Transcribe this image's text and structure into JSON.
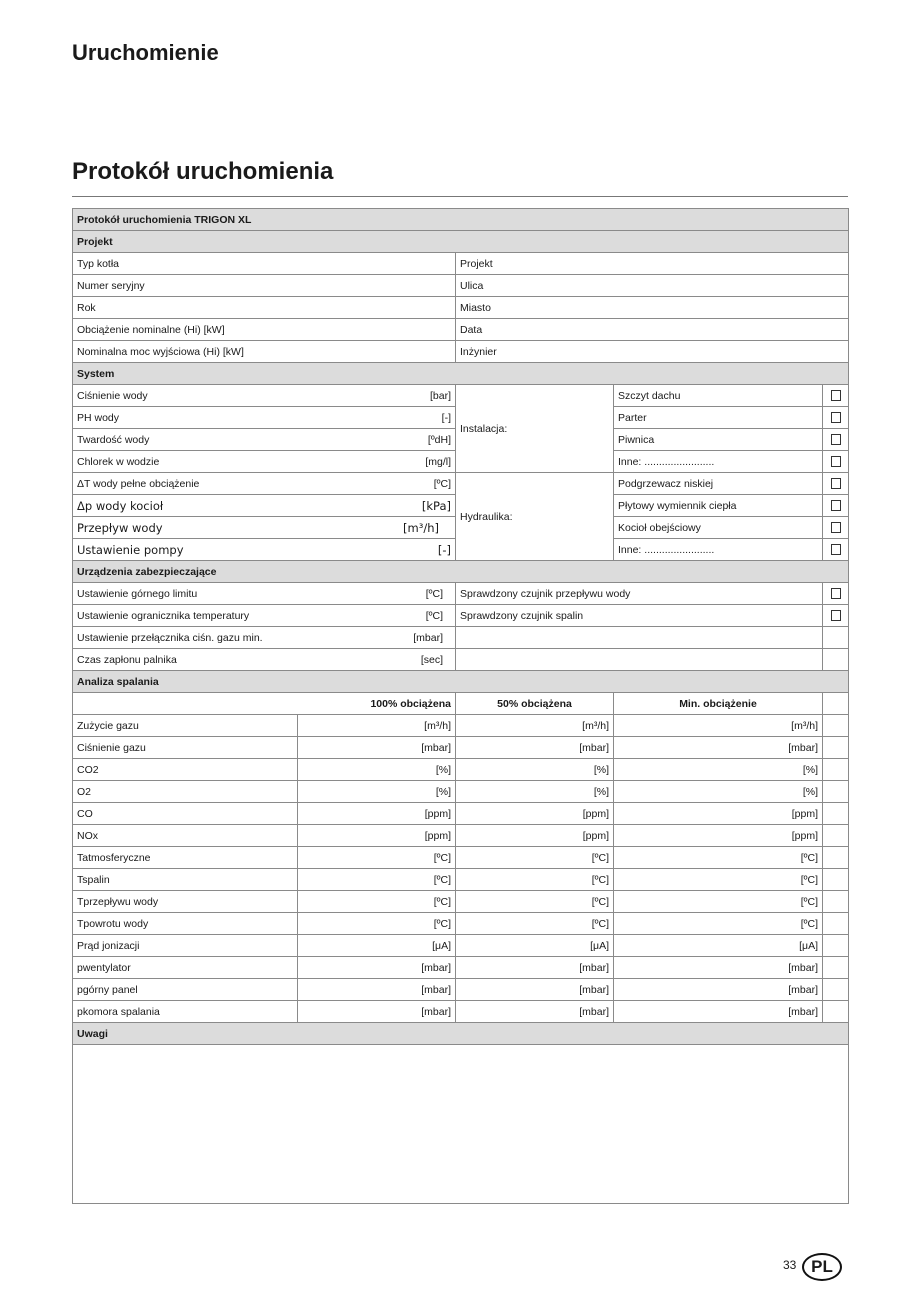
{
  "header": {
    "section": "Uruchomienie",
    "title": "Protokół uruchomienia"
  },
  "table": {
    "title": "Protokół uruchomienia TRIGON XL",
    "projekt": {
      "label": "Projekt",
      "rows": [
        [
          "Typ kotła",
          "Projekt"
        ],
        [
          "Numer seryjny",
          "Ulica"
        ],
        [
          "Rok",
          "Miasto"
        ],
        [
          "Obciążenie nominalne (Hi) [kW]",
          "Data"
        ],
        [
          "Nominalna moc wyjściowa (Hi) [kW]",
          "Inżynier"
        ]
      ]
    },
    "system": {
      "label": "System",
      "rows": [
        {
          "label": "Ciśnienie wody",
          "unit": "[bar]",
          "option": "Szczyt dachu"
        },
        {
          "label": "PH wody",
          "unit": "[-]",
          "option": "Parter"
        },
        {
          "label": "Twardość wody",
          "unit": "[ºdH]",
          "option": "Piwnica"
        },
        {
          "label": "Chlorek w wodzie",
          "unit": "[mg/l]",
          "option": "Inne: ........................"
        },
        {
          "label": "ΔT wody pełne obciążenie",
          "unit": "[ºC]",
          "option": "Podgrzewacz niskiej"
        },
        {
          "label": "Δp wody kocioł",
          "unit": "[kPa]",
          "option": "Płytowy wymiennik ciepła",
          "big": true
        },
        {
          "label": "Przepływ wody",
          "unit": "[m³/h]",
          "option": "Kocioł obejściowy",
          "big": true
        },
        {
          "label": "Ustawienie pompy",
          "unit": "[-]",
          "option": "Inne: ........................",
          "big": true
        }
      ],
      "group1": "Instalacja:",
      "group2": "Hydraulika:"
    },
    "safety": {
      "label": "Urządzenia zabezpieczające",
      "rows": [
        {
          "label": "Ustawienie górnego limitu",
          "unit": "[ºC]",
          "check": "Sprawdzony czujnik przepływu wody"
        },
        {
          "label": "Ustawienie ogranicznika temperatury",
          "unit": "[ºC]",
          "check": "Sprawdzony czujnik spalin"
        },
        {
          "label": "Ustawienie przełącznika ciśn. gazu min.",
          "unit": "[mbar]",
          "check": ""
        },
        {
          "label": "Czas zapłonu palnika",
          "unit": "[sec]",
          "check": ""
        }
      ]
    },
    "combustion": {
      "label": "Analiza spalania",
      "columns": [
        "100% obciążena",
        "50% obciążena",
        "Min. obciążenie"
      ],
      "rows": [
        [
          "Zużycie gazu",
          "[m³/h]"
        ],
        [
          "Ciśnienie gazu",
          "[mbar]"
        ],
        [
          "CO2",
          "[%]"
        ],
        [
          "O2",
          "[%]"
        ],
        [
          "CO",
          "[ppm]"
        ],
        [
          "NOx",
          "[ppm]"
        ],
        [
          "Tatmosferyczne",
          "[ºC]"
        ],
        [
          "Tspalin",
          "[ºC]"
        ],
        [
          "Tprzepływu wody",
          "[ºC]"
        ],
        [
          "Tpowrotu wody",
          "[ºC]"
        ],
        [
          "Prąd jonizacji",
          "[μA]"
        ],
        [
          "pwentylator",
          "[mbar]"
        ],
        [
          "pgórny panel",
          "[mbar]"
        ],
        [
          "pkomora spalania",
          "[mbar]"
        ]
      ]
    },
    "notes": {
      "label": "Uwagi",
      "value": ""
    }
  },
  "footer": {
    "page_number": "33",
    "language_badge": "PL"
  }
}
